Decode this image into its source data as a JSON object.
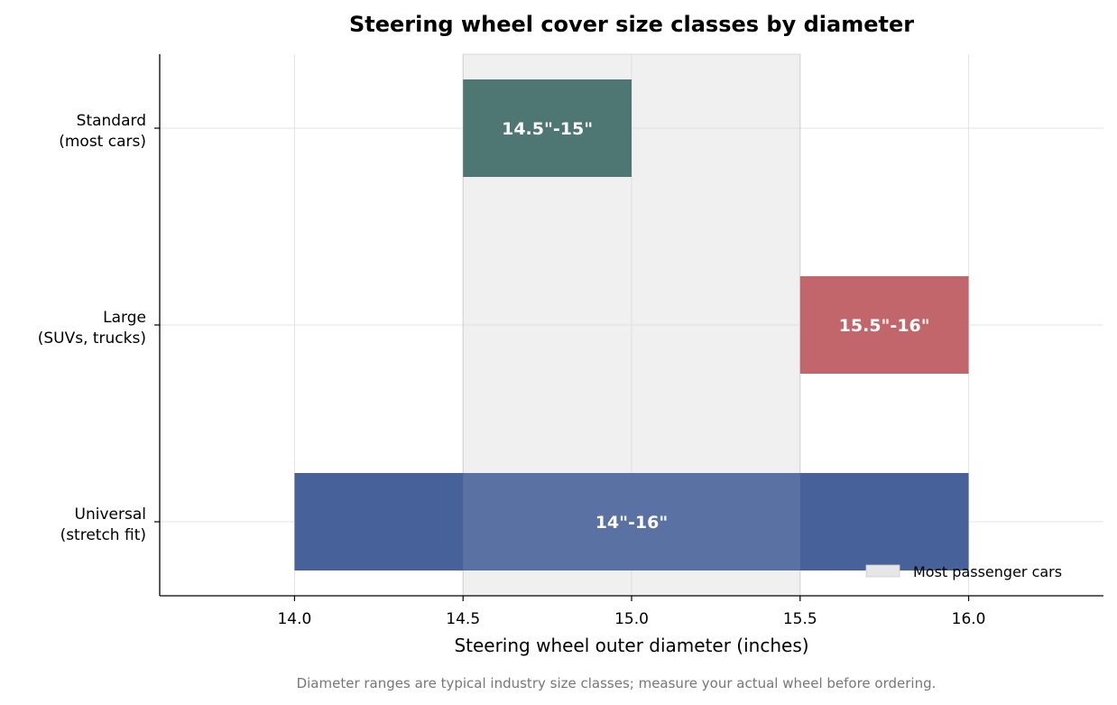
{
  "chart_data": {
    "type": "bar",
    "orientation": "horizontal-range",
    "title": "Steering wheel cover size classes by diameter",
    "xlabel": "Steering wheel outer diameter (inches)",
    "ylabel": "",
    "xlim": [
      13.6,
      16.4
    ],
    "xticks": [
      14.0,
      14.5,
      15.0,
      15.5,
      16.0
    ],
    "xtick_labels": [
      "14.0",
      "14.5",
      "15.0",
      "15.5",
      "16.0"
    ],
    "grid": true,
    "categories": [
      {
        "line1": "Standard",
        "line2": "(most cars)",
        "start": 14.5,
        "end": 15.0,
        "label": "14.5\"-15\"",
        "color": "#3a6864"
      },
      {
        "line1": "Large",
        "line2": "(SUVs, trucks)",
        "start": 15.5,
        "end": 16.0,
        "label": "15.5\"-16\"",
        "color": "#c2666b"
      },
      {
        "line1": "Universal",
        "line2": "(stretch fit)",
        "start": 14.0,
        "end": 16.0,
        "label": "14\"-16\"",
        "color": "#47619a"
      }
    ],
    "highlight_band": {
      "start": 14.5,
      "end": 15.5,
      "label": "Most passenger cars",
      "color": "#e6e6e6"
    },
    "legend": {
      "placement": "bottom-right",
      "entries": [
        "Most passenger cars"
      ]
    },
    "footnote": "Diameter ranges are typical industry size classes; measure your actual wheel before ordering."
  }
}
